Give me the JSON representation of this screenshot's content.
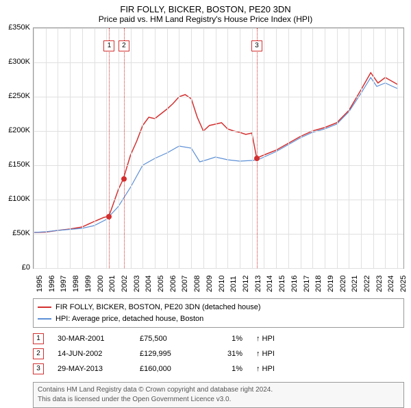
{
  "title": "FIR FOLLY, BICKER, BOSTON, PE20 3DN",
  "subtitle": "Price paid vs. HM Land Registry's House Price Index (HPI)",
  "chart": {
    "type": "line",
    "background_color": "#ffffff",
    "grid_color": "#e0e0e0",
    "border_color": "#999999",
    "ylim": [
      0,
      350000
    ],
    "ytick_step": 50000,
    "yticks": [
      "£0",
      "£50K",
      "£100K",
      "£150K",
      "£200K",
      "£250K",
      "£300K",
      "£350K"
    ],
    "xlim": [
      1995,
      2025.5
    ],
    "xticks": [
      "1995",
      "1996",
      "1997",
      "1998",
      "1999",
      "2000",
      "2001",
      "2002",
      "2003",
      "2004",
      "2005",
      "2006",
      "2007",
      "2008",
      "2009",
      "2010",
      "2011",
      "2012",
      "2013",
      "2014",
      "2015",
      "2016",
      "2017",
      "2018",
      "2019",
      "2020",
      "2021",
      "2022",
      "2023",
      "2024",
      "2025"
    ],
    "series": [
      {
        "name": "red_line",
        "color": "#d32f2f",
        "width": 1.5,
        "label": "FIR FOLLY, BICKER, BOSTON, PE20 3DN (detached house)",
        "points": [
          [
            1995,
            52000
          ],
          [
            1996,
            52500
          ],
          [
            1997,
            55000
          ],
          [
            1998,
            57000
          ],
          [
            1999,
            60000
          ],
          [
            2000,
            68000
          ],
          [
            2000.8,
            74000
          ],
          [
            2001.2,
            75500
          ],
          [
            2001.5,
            90000
          ],
          [
            2002,
            115000
          ],
          [
            2002.4,
            129995
          ],
          [
            2003,
            165000
          ],
          [
            2003.5,
            185000
          ],
          [
            2004,
            208000
          ],
          [
            2004.5,
            220000
          ],
          [
            2005,
            218000
          ],
          [
            2005.5,
            225000
          ],
          [
            2006,
            232000
          ],
          [
            2006.5,
            240000
          ],
          [
            2007,
            250000
          ],
          [
            2007.5,
            253000
          ],
          [
            2008,
            247000
          ],
          [
            2008.5,
            220000
          ],
          [
            2009,
            200000
          ],
          [
            2009.5,
            208000
          ],
          [
            2010,
            210000
          ],
          [
            2010.5,
            212000
          ],
          [
            2011,
            203000
          ],
          [
            2011.5,
            200000
          ],
          [
            2012,
            198000
          ],
          [
            2012.5,
            195000
          ],
          [
            2013,
            197000
          ],
          [
            2013.4,
            160000
          ],
          [
            2013.6,
            162000
          ],
          [
            2014,
            165000
          ],
          [
            2015,
            172000
          ],
          [
            2016,
            182000
          ],
          [
            2017,
            192000
          ],
          [
            2018,
            200000
          ],
          [
            2019,
            205000
          ],
          [
            2020,
            212000
          ],
          [
            2021,
            230000
          ],
          [
            2022,
            260000
          ],
          [
            2022.8,
            285000
          ],
          [
            2023.4,
            270000
          ],
          [
            2024,
            278000
          ],
          [
            2024.6,
            272000
          ],
          [
            2025,
            268000
          ]
        ]
      },
      {
        "name": "blue_line",
        "color": "#5b8fd6",
        "width": 1.2,
        "label": "HPI: Average price, detached house, Boston",
        "points": [
          [
            1995,
            52000
          ],
          [
            1996,
            53000
          ],
          [
            1997,
            55000
          ],
          [
            1998,
            56500
          ],
          [
            1999,
            58000
          ],
          [
            2000,
            62000
          ],
          [
            2001,
            71000
          ],
          [
            2002,
            90000
          ],
          [
            2003,
            118000
          ],
          [
            2004,
            150000
          ],
          [
            2005,
            160000
          ],
          [
            2006,
            168000
          ],
          [
            2007,
            178000
          ],
          [
            2008,
            175000
          ],
          [
            2008.7,
            155000
          ],
          [
            2009.3,
            158000
          ],
          [
            2010,
            162000
          ],
          [
            2011,
            158000
          ],
          [
            2012,
            156000
          ],
          [
            2013,
            157000
          ],
          [
            2013.5,
            158000
          ],
          [
            2014,
            162000
          ],
          [
            2015,
            170000
          ],
          [
            2016,
            180000
          ],
          [
            2017,
            190000
          ],
          [
            2018,
            198000
          ],
          [
            2019,
            203000
          ],
          [
            2020,
            210000
          ],
          [
            2021,
            228000
          ],
          [
            2022,
            255000
          ],
          [
            2022.8,
            278000
          ],
          [
            2023.3,
            265000
          ],
          [
            2024,
            270000
          ],
          [
            2024.6,
            265000
          ],
          [
            2025,
            262000
          ]
        ]
      }
    ],
    "markers": [
      {
        "n": "1",
        "year": 2001.24,
        "box_y": 40000
      },
      {
        "n": "2",
        "year": 2002.45,
        "box_y": 40000
      },
      {
        "n": "3",
        "year": 2013.41,
        "box_y": 40000
      }
    ],
    "sale_dots": [
      {
        "year": 2001.24,
        "value": 75500
      },
      {
        "year": 2002.45,
        "value": 129995
      },
      {
        "year": 2013.41,
        "value": 160000
      }
    ]
  },
  "legend": {
    "rows": [
      {
        "color": "#d32f2f",
        "label": "FIR FOLLY, BICKER, BOSTON, PE20 3DN (detached house)"
      },
      {
        "color": "#5b8fd6",
        "label": "HPI: Average price, detached house, Boston"
      }
    ]
  },
  "transactions": [
    {
      "n": "1",
      "date": "30-MAR-2001",
      "price": "£75,500",
      "pct": "1%",
      "dir": "↑ HPI"
    },
    {
      "n": "2",
      "date": "14-JUN-2002",
      "price": "£129,995",
      "pct": "31%",
      "dir": "↑ HPI"
    },
    {
      "n": "3",
      "date": "29-MAY-2013",
      "price": "£160,000",
      "pct": "1%",
      "dir": "↑ HPI"
    }
  ],
  "footer": {
    "line1": "Contains HM Land Registry data © Crown copyright and database right 2024.",
    "line2": "This data is licensed under the Open Government Licence v3.0."
  }
}
